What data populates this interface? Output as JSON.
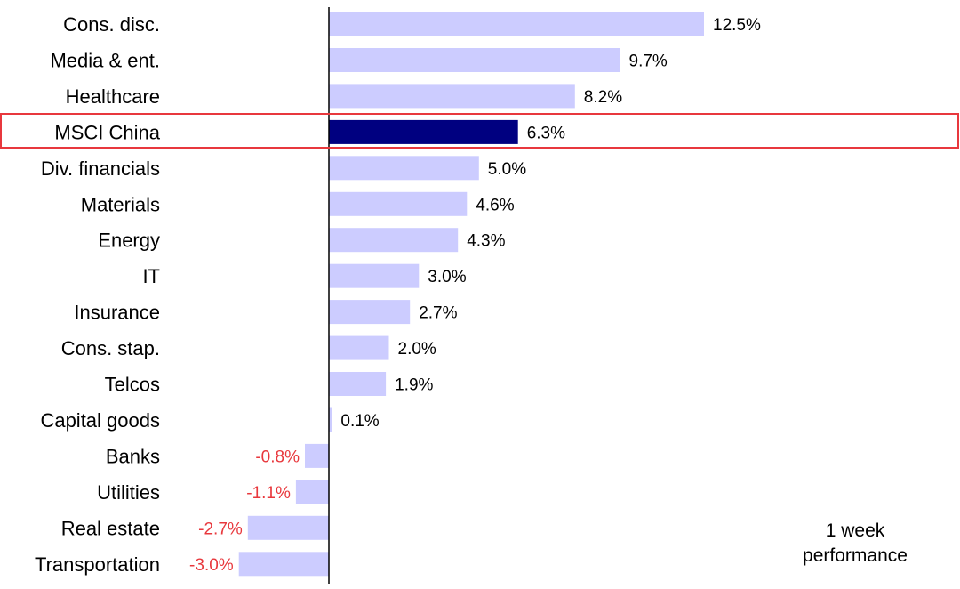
{
  "chart_data": {
    "type": "bar",
    "orientation": "horizontal",
    "categories": [
      "Cons. disc.",
      "Media & ent.",
      "Healthcare",
      "MSCI China",
      "Div. financials",
      "Materials",
      "Energy",
      "IT",
      "Insurance",
      "Cons. stap.",
      "Telcos",
      "Capital goods",
      "Banks",
      "Utilities",
      "Real estate",
      "Transportation"
    ],
    "values": [
      12.5,
      9.7,
      8.2,
      6.3,
      5.0,
      4.6,
      4.3,
      3.0,
      2.7,
      2.0,
      1.9,
      0.1,
      -0.8,
      -1.1,
      -2.7,
      -3.0
    ],
    "value_labels": [
      "12.5%",
      "9.7%",
      "8.2%",
      "6.3%",
      "5.0%",
      "4.6%",
      "4.3%",
      "3.0%",
      "2.7%",
      "2.0%",
      "1.9%",
      "0.1%",
      "-0.8%",
      "-1.1%",
      "-2.7%",
      "-3.0%"
    ],
    "highlight_category": "MSCI China",
    "note_lines": [
      "1 week",
      "performance"
    ],
    "title": "",
    "xlabel": "",
    "ylabel": "",
    "colors": {
      "bar": "#ccccff",
      "highlight_bar": "#000080",
      "highlight_box": "#e8383d",
      "negative_label": "#e8383d",
      "positive_label": "#000000",
      "axis": "#000000"
    },
    "grid": false,
    "legend": "none"
  }
}
